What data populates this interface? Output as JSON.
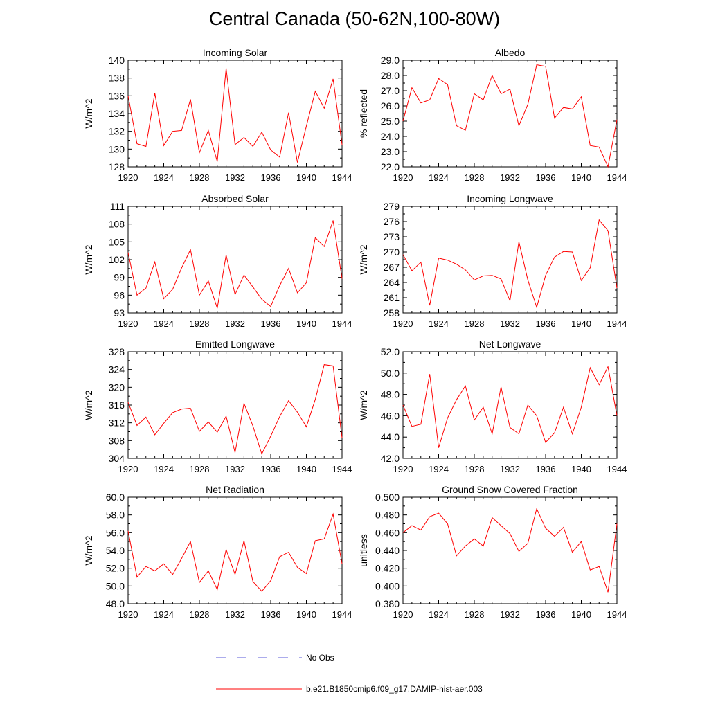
{
  "title": "Central Canada (50-62N,100-80W)",
  "colors": {
    "model_line": "#ff0000",
    "obs_line": "#5a5ad8",
    "axis": "#000000"
  },
  "legend": [
    {
      "label": "No Obs",
      "style": "dashed",
      "color": "#5a5ad8"
    },
    {
      "label": "b.e21.B1850cmip6.f09_g17.DAMIP-hist-aer.003",
      "style": "solid",
      "color": "#ff0000"
    }
  ],
  "chart_data": [
    {
      "type": "line",
      "title": "Incoming Solar",
      "ylabel": "W/m^2",
      "xlim": [
        1920,
        1944
      ],
      "ylim": [
        128,
        140
      ],
      "xticks": [
        "1920",
        "1924",
        "1928",
        "1932",
        "1936",
        "1940",
        "1944"
      ],
      "yticks": [
        "128",
        "130",
        "132",
        "134",
        "136",
        "138",
        "140"
      ],
      "series": [
        {
          "x": [
            1920,
            1921,
            1922,
            1923,
            1924,
            1925,
            1926,
            1927,
            1928,
            1929,
            1930,
            1931,
            1932,
            1933,
            1934,
            1935,
            1936,
            1937,
            1938,
            1939,
            1940,
            1941,
            1942,
            1943,
            1944
          ],
          "values": [
            136.0,
            130.6,
            130.3,
            136.3,
            130.4,
            132.0,
            132.1,
            135.6,
            129.6,
            132.1,
            128.6,
            139.1,
            130.5,
            131.3,
            130.3,
            131.9,
            129.9,
            129.1,
            134.1,
            128.5,
            132.6,
            136.5,
            134.6,
            137.9,
            130.5
          ]
        }
      ]
    },
    {
      "type": "line",
      "title": "Albedo",
      "ylabel": "% reflected",
      "xlim": [
        1920,
        1944
      ],
      "ylim": [
        22.0,
        29.0
      ],
      "xticks": [
        "1920",
        "1924",
        "1928",
        "1932",
        "1936",
        "1940",
        "1944"
      ],
      "yticks": [
        "22.0",
        "23.0",
        "24.0",
        "25.0",
        "26.0",
        "27.0",
        "28.0",
        "29.0"
      ],
      "series": [
        {
          "x": [
            1920,
            1921,
            1922,
            1923,
            1924,
            1925,
            1926,
            1927,
            1928,
            1929,
            1930,
            1931,
            1932,
            1933,
            1934,
            1935,
            1936,
            1937,
            1938,
            1939,
            1940,
            1941,
            1942,
            1943,
            1944
          ],
          "values": [
            25.0,
            27.2,
            26.2,
            26.4,
            27.8,
            27.4,
            24.7,
            24.4,
            26.8,
            26.4,
            28.0,
            26.8,
            27.1,
            24.7,
            26.1,
            28.7,
            28.6,
            25.2,
            25.9,
            25.8,
            26.6,
            23.4,
            23.3,
            22.0,
            25.1
          ]
        }
      ]
    },
    {
      "type": "line",
      "title": "Absorbed Solar",
      "ylabel": "W/m^2",
      "xlim": [
        1920,
        1944
      ],
      "ylim": [
        93,
        111
      ],
      "xticks": [
        "1920",
        "1924",
        "1928",
        "1932",
        "1936",
        "1940",
        "1944"
      ],
      "yticks": [
        "93",
        "96",
        "99",
        "102",
        "105",
        "108",
        "111"
      ],
      "series": [
        {
          "x": [
            1920,
            1921,
            1922,
            1923,
            1924,
            1925,
            1926,
            1927,
            1928,
            1929,
            1930,
            1931,
            1932,
            1933,
            1934,
            1935,
            1936,
            1937,
            1938,
            1939,
            1940,
            1941,
            1942,
            1943,
            1944
          ],
          "values": [
            103.2,
            96.0,
            97.2,
            101.6,
            95.4,
            97.0,
            100.6,
            103.7,
            96.0,
            98.4,
            93.8,
            102.8,
            96.1,
            99.4,
            97.4,
            95.3,
            94.1,
            97.6,
            100.5,
            96.4,
            98.1,
            105.7,
            104.2,
            108.6,
            98.8
          ]
        }
      ]
    },
    {
      "type": "line",
      "title": "Incoming Longwave",
      "ylabel": "W/m^2",
      "xlim": [
        1920,
        1944
      ],
      "ylim": [
        258,
        279
      ],
      "xticks": [
        "1920",
        "1924",
        "1928",
        "1932",
        "1936",
        "1940",
        "1944"
      ],
      "yticks": [
        "258",
        "261",
        "264",
        "267",
        "270",
        "273",
        "276",
        "279"
      ],
      "series": [
        {
          "x": [
            1920,
            1921,
            1922,
            1923,
            1924,
            1925,
            1926,
            1927,
            1928,
            1929,
            1930,
            1931,
            1932,
            1933,
            1934,
            1935,
            1936,
            1937,
            1938,
            1939,
            1940,
            1941,
            1942,
            1943,
            1944
          ],
          "values": [
            269.5,
            266.3,
            268.0,
            259.5,
            268.8,
            268.4,
            267.6,
            266.5,
            264.5,
            265.3,
            265.4,
            264.7,
            260.4,
            272.0,
            264.5,
            259.1,
            265.4,
            269.0,
            270.1,
            270.0,
            264.4,
            266.9,
            276.3,
            274.2,
            262.9
          ]
        }
      ]
    },
    {
      "type": "line",
      "title": "Emitted Longwave",
      "ylabel": "W/m^2",
      "xlim": [
        1920,
        1944
      ],
      "ylim": [
        304,
        328
      ],
      "xticks": [
        "1920",
        "1924",
        "1928",
        "1932",
        "1936",
        "1940",
        "1944"
      ],
      "yticks": [
        "304",
        "308",
        "312",
        "316",
        "320",
        "324",
        "328"
      ],
      "series": [
        {
          "x": [
            1920,
            1921,
            1922,
            1923,
            1924,
            1925,
            1926,
            1927,
            1928,
            1929,
            1930,
            1931,
            1932,
            1933,
            1934,
            1935,
            1936,
            1937,
            1938,
            1939,
            1940,
            1941,
            1942,
            1943,
            1944
          ],
          "values": [
            316.6,
            311.4,
            313.3,
            309.3,
            311.9,
            314.3,
            315.1,
            315.3,
            310.1,
            312.2,
            309.9,
            313.5,
            305.3,
            316.4,
            311.3,
            305.0,
            309.0,
            313.4,
            317.0,
            314.4,
            311.1,
            317.3,
            325.1,
            324.8,
            308.6
          ]
        }
      ]
    },
    {
      "type": "line",
      "title": "Net Longwave",
      "ylabel": "W/m^2",
      "xlim": [
        1920,
        1944
      ],
      "ylim": [
        42.0,
        52.0
      ],
      "xticks": [
        "1920",
        "1924",
        "1928",
        "1932",
        "1936",
        "1940",
        "1944"
      ],
      "yticks": [
        "42.0",
        "44.0",
        "46.0",
        "48.0",
        "50.0",
        "52.0"
      ],
      "series": [
        {
          "x": [
            1920,
            1921,
            1922,
            1923,
            1924,
            1925,
            1926,
            1927,
            1928,
            1929,
            1930,
            1931,
            1932,
            1933,
            1934,
            1935,
            1936,
            1937,
            1938,
            1939,
            1940,
            1941,
            1942,
            1943,
            1944
          ],
          "values": [
            47.0,
            45.0,
            45.2,
            49.9,
            43.0,
            45.8,
            47.5,
            48.8,
            45.6,
            46.8,
            44.3,
            48.7,
            44.9,
            44.3,
            47.0,
            46.0,
            43.5,
            44.4,
            46.8,
            44.3,
            46.8,
            50.5,
            48.9,
            50.6,
            46.0
          ]
        }
      ]
    },
    {
      "type": "line",
      "title": "Net Radiation",
      "ylabel": "W/m^2",
      "xlim": [
        1920,
        1944
      ],
      "ylim": [
        48.0,
        60.0
      ],
      "xticks": [
        "1920",
        "1924",
        "1928",
        "1932",
        "1936",
        "1940",
        "1944"
      ],
      "yticks": [
        "48.0",
        "50.0",
        "52.0",
        "54.0",
        "56.0",
        "58.0",
        "60.0"
      ],
      "series": [
        {
          "x": [
            1920,
            1921,
            1922,
            1923,
            1924,
            1925,
            1926,
            1927,
            1928,
            1929,
            1930,
            1931,
            1932,
            1933,
            1934,
            1935,
            1936,
            1937,
            1938,
            1939,
            1940,
            1941,
            1942,
            1943,
            1944
          ],
          "values": [
            56.2,
            51.0,
            52.2,
            51.7,
            52.5,
            51.3,
            53.1,
            55.0,
            50.4,
            51.7,
            49.6,
            54.1,
            51.3,
            55.1,
            50.5,
            49.4,
            50.6,
            53.3,
            53.8,
            52.1,
            51.4,
            55.1,
            55.3,
            58.1,
            52.5
          ]
        }
      ]
    },
    {
      "type": "line",
      "title": "Ground Snow Covered Fraction",
      "ylabel": "unitless",
      "xlim": [
        1920,
        1944
      ],
      "ylim": [
        0.38,
        0.5
      ],
      "xticks": [
        "1920",
        "1924",
        "1928",
        "1932",
        "1936",
        "1940",
        "1944"
      ],
      "yticks": [
        "0.380",
        "0.400",
        "0.420",
        "0.440",
        "0.460",
        "0.480",
        "0.500"
      ],
      "series": [
        {
          "x": [
            1920,
            1921,
            1922,
            1923,
            1924,
            1925,
            1926,
            1927,
            1928,
            1929,
            1930,
            1931,
            1932,
            1933,
            1934,
            1935,
            1936,
            1937,
            1938,
            1939,
            1940,
            1941,
            1942,
            1943,
            1944
          ],
          "values": [
            0.46,
            0.468,
            0.463,
            0.478,
            0.482,
            0.47,
            0.434,
            0.445,
            0.453,
            0.445,
            0.477,
            0.468,
            0.459,
            0.439,
            0.448,
            0.487,
            0.465,
            0.456,
            0.466,
            0.438,
            0.45,
            0.418,
            0.422,
            0.393,
            0.47
          ]
        }
      ]
    }
  ]
}
